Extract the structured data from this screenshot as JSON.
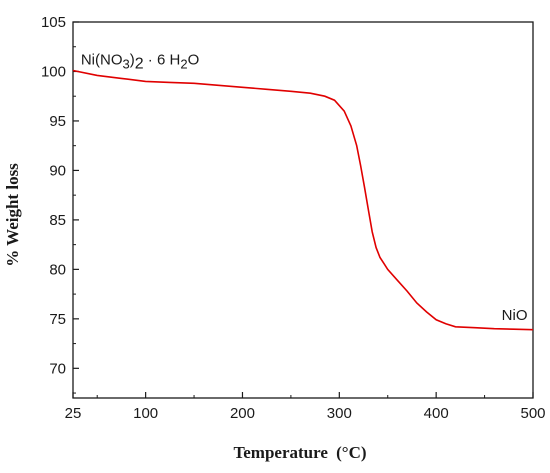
{
  "chart_data": {
    "type": "line",
    "title": "",
    "xlabel": "Temperature",
    "xlabel_unit": "(°C)",
    "ylabel": "% Weight loss",
    "xlim": [
      25,
      500
    ],
    "ylim": [
      67,
      105
    ],
    "xticks": [
      25,
      100,
      200,
      300,
      400,
      500
    ],
    "yticks": [
      70,
      75,
      80,
      85,
      90,
      95,
      100,
      105
    ],
    "grid": false,
    "line_color": "#e00000",
    "series": [
      {
        "x": [
          25,
          50,
          75,
          100,
          125,
          150,
          175,
          200,
          225,
          250,
          270,
          285,
          295,
          305,
          312,
          318,
          322,
          326,
          330,
          334,
          338,
          342,
          346,
          350,
          360,
          370,
          380,
          390,
          400,
          410,
          420,
          440,
          460,
          480,
          500
        ],
        "values": [
          100.1,
          99.6,
          99.3,
          99.0,
          98.9,
          98.8,
          98.6,
          98.4,
          98.2,
          98.0,
          97.8,
          97.5,
          97.1,
          96.0,
          94.5,
          92.5,
          90.5,
          88.3,
          86.0,
          83.8,
          82.2,
          81.2,
          80.6,
          80.0,
          78.9,
          77.8,
          76.6,
          75.7,
          74.9,
          74.5,
          74.2,
          74.1,
          74.0,
          73.95,
          73.9
        ]
      }
    ],
    "annotations": [
      {
        "x": 30,
        "y": 101.2,
        "text_parts": [
          "Ni(NO",
          "3",
          ")",
          "2",
          " · 6 H",
          "2",
          "O"
        ]
      },
      {
        "x": 447,
        "y": 74.5,
        "text": "NiO"
      }
    ]
  }
}
